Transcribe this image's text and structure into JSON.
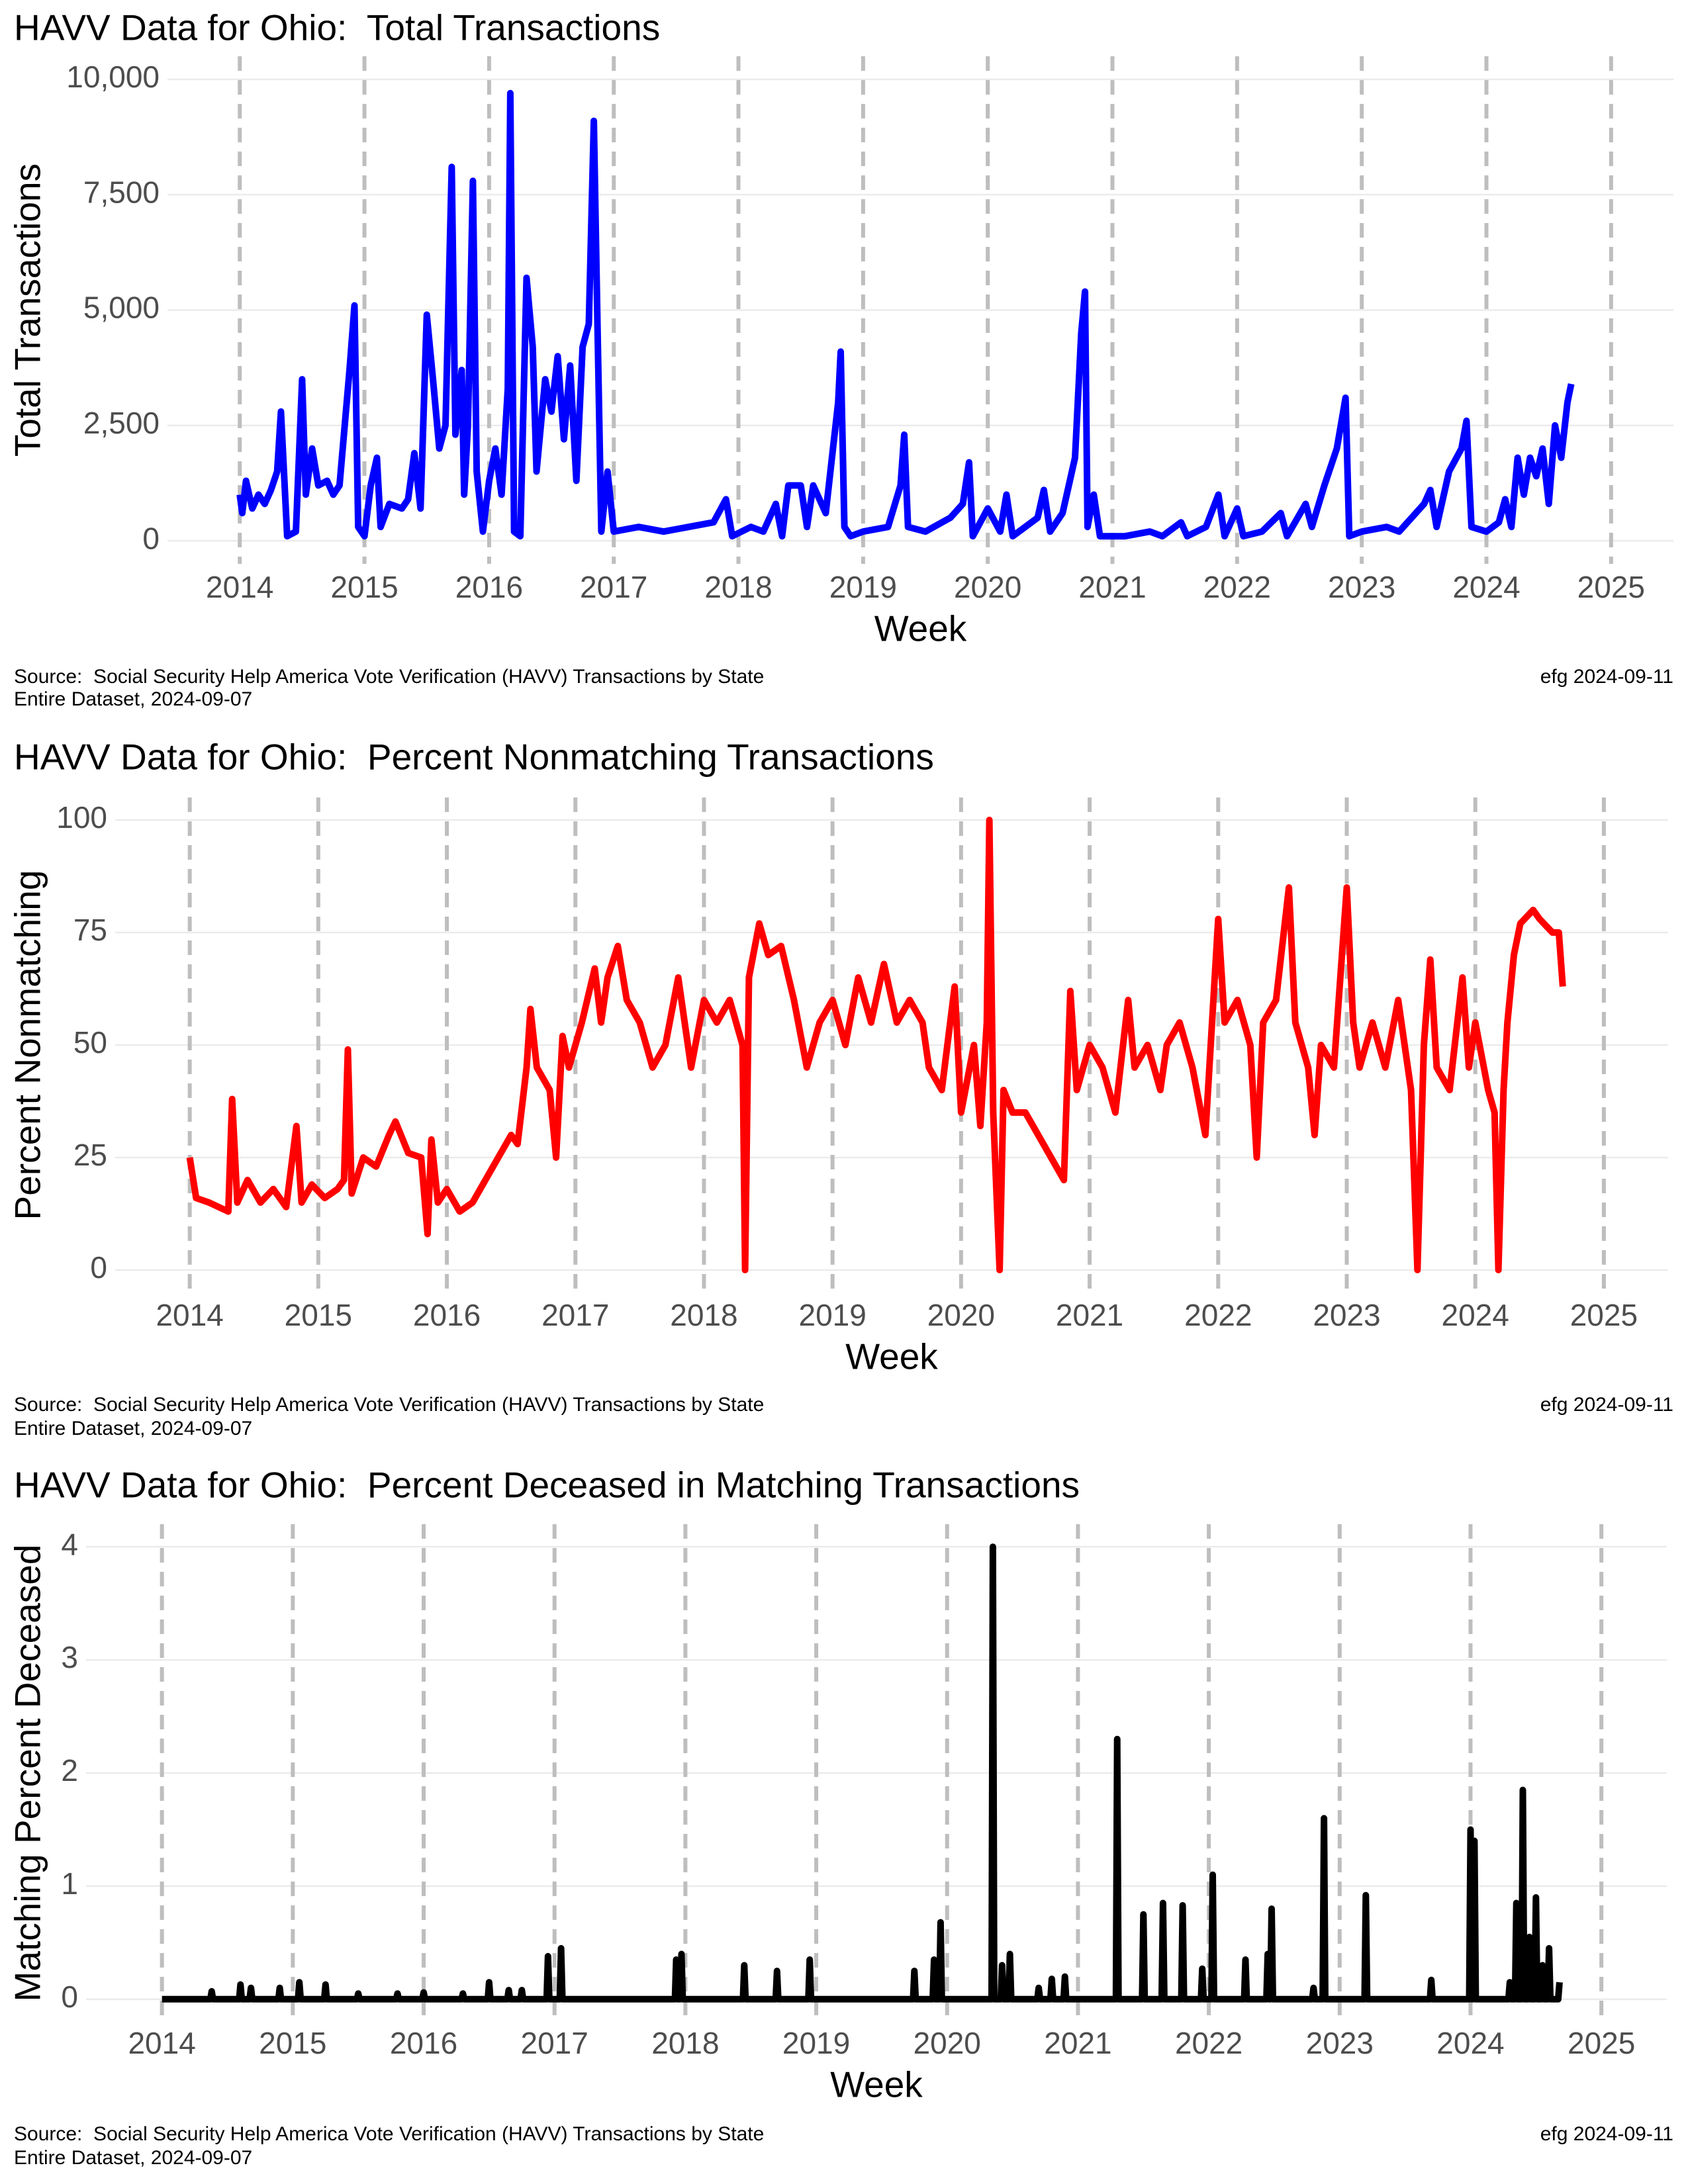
{
  "chart_data": [
    {
      "type": "line",
      "title": "HAVV Data for Ohio:  Total Transactions",
      "x_label": "Week",
      "y_label": "Total Transactions",
      "source": "Source:  Social Security Help America Vote Verification (HAVV) Transactions by State",
      "dataset": "Entire Dataset, 2024-09-07",
      "credit": "efg 2024-09-11",
      "color": "#0000ff",
      "grid": true,
      "year_lines": "dashed",
      "xlim": [
        2013.42,
        2025.5
      ],
      "xticks": [
        2014,
        2015,
        2016,
        2017,
        2018,
        2019,
        2020,
        2021,
        2022,
        2023,
        2024,
        2025
      ],
      "ylim": [
        -500,
        10500
      ],
      "yticks": [
        0,
        {
          "value": 2500,
          "label": "2,500"
        },
        {
          "value": 5000,
          "label": "5,000"
        },
        {
          "value": 7500,
          "label": "7,500"
        },
        {
          "value": 10000,
          "label": "10,000"
        }
      ],
      "x": [
        2014.0,
        2014.02,
        2014.05,
        2014.1,
        2014.15,
        2014.2,
        2014.25,
        2014.3,
        2014.33,
        2014.36,
        2014.38,
        2014.45,
        2014.5,
        2014.53,
        2014.58,
        2014.63,
        2014.7,
        2014.75,
        2014.8,
        2014.88,
        2014.92,
        2014.95,
        2015.0,
        2015.05,
        2015.1,
        2015.13,
        2015.2,
        2015.3,
        2015.35,
        2015.4,
        2015.45,
        2015.5,
        2015.55,
        2015.6,
        2015.65,
        2015.7,
        2015.73,
        2015.78,
        2015.8,
        2015.83,
        2015.87,
        2015.9,
        2015.95,
        2016.0,
        2016.05,
        2016.1,
        2016.15,
        2016.17,
        2016.2,
        2016.25,
        2016.3,
        2016.35,
        2016.38,
        2016.45,
        2016.5,
        2016.55,
        2016.6,
        2016.65,
        2016.7,
        2016.75,
        2016.8,
        2016.84,
        2016.87,
        2016.9,
        2016.95,
        2017.0,
        2017.2,
        2017.4,
        2017.6,
        2017.8,
        2017.9,
        2017.95,
        2018.1,
        2018.2,
        2018.3,
        2018.35,
        2018.4,
        2018.5,
        2018.55,
        2018.6,
        2018.7,
        2018.75,
        2018.8,
        2018.82,
        2018.85,
        2018.9,
        2019.0,
        2019.2,
        2019.3,
        2019.33,
        2019.36,
        2019.5,
        2019.7,
        2019.8,
        2019.85,
        2019.88,
        2020.0,
        2020.1,
        2020.15,
        2020.2,
        2020.4,
        2020.45,
        2020.5,
        2020.6,
        2020.65,
        2020.7,
        2020.75,
        2020.78,
        2020.8,
        2020.85,
        2020.9,
        2021.1,
        2021.3,
        2021.4,
        2021.55,
        2021.6,
        2021.75,
        2021.85,
        2021.9,
        2022.0,
        2022.05,
        2022.2,
        2022.35,
        2022.4,
        2022.55,
        2022.6,
        2022.7,
        2022.8,
        2022.87,
        2022.9,
        2023.0,
        2023.2,
        2023.3,
        2023.4,
        2023.5,
        2023.55,
        2023.6,
        2023.7,
        2023.8,
        2023.84,
        2023.88,
        2024.0,
        2024.1,
        2024.15,
        2024.2,
        2024.25,
        2024.3,
        2024.35,
        2024.4,
        2024.45,
        2024.5,
        2024.55,
        2024.6,
        2024.65,
        2024.68
      ],
      "values": [
        1000,
        600,
        1300,
        700,
        1000,
        800,
        1100,
        1500,
        2800,
        1200,
        100,
        200,
        3500,
        1000,
        2000,
        1200,
        1300,
        1000,
        1200,
        3700,
        5100,
        300,
        100,
        1200,
        1800,
        300,
        800,
        700,
        900,
        1900,
        700,
        4900,
        3500,
        2000,
        2500,
        8100,
        2300,
        3700,
        1000,
        2500,
        7800,
        1500,
        200,
        1300,
        2000,
        1000,
        3300,
        9700,
        200,
        100,
        5700,
        4200,
        1500,
        3500,
        2800,
        4000,
        2200,
        3800,
        1300,
        4200,
        4700,
        9100,
        4600,
        200,
        1500,
        200,
        300,
        200,
        300,
        400,
        900,
        100,
        300,
        200,
        800,
        100,
        1200,
        1200,
        300,
        1200,
        600,
        1800,
        3000,
        4100,
        300,
        100,
        200,
        300,
        1200,
        2300,
        300,
        200,
        500,
        800,
        1700,
        100,
        700,
        200,
        1000,
        100,
        500,
        1100,
        200,
        600,
        1200,
        1800,
        4500,
        5400,
        300,
        1000,
        100,
        100,
        200,
        100,
        400,
        100,
        300,
        1000,
        100,
        700,
        100,
        200,
        600,
        100,
        800,
        300,
        1200,
        2000,
        3100,
        100,
        200,
        300,
        200,
        500,
        800,
        1100,
        300,
        1500,
        2000,
        2600,
        300,
        200,
        400,
        900,
        300,
        1800,
        1000,
        1800,
        1400,
        2000,
        800,
        2500,
        1800,
        3000,
        3400
      ]
    },
    {
      "type": "line",
      "title": "HAVV Data for Ohio:  Percent Nonmatching Transactions",
      "x_label": "Week",
      "y_label": "Percent Nonmatching",
      "source": "Source:  Social Security Help America Vote Verification (HAVV) Transactions by State",
      "dataset": "Entire Dataset, 2024-09-07",
      "credit": "efg 2024-09-11",
      "color": "#ff0000",
      "grid": true,
      "year_lines": "dashed",
      "xlim": [
        2013.42,
        2025.5
      ],
      "xticks": [
        2014,
        2015,
        2016,
        2017,
        2018,
        2019,
        2020,
        2021,
        2022,
        2023,
        2024,
        2025
      ],
      "ylim": [
        -5,
        105
      ],
      "yticks": [
        0,
        25,
        50,
        75,
        100
      ],
      "x": [
        2014.0,
        2014.05,
        2014.15,
        2014.3,
        2014.33,
        2014.37,
        2014.45,
        2014.55,
        2014.65,
        2014.75,
        2014.83,
        2014.87,
        2014.95,
        2015.05,
        2015.15,
        2015.2,
        2015.23,
        2015.26,
        2015.35,
        2015.45,
        2015.55,
        2015.6,
        2015.7,
        2015.8,
        2015.85,
        2015.88,
        2015.93,
        2016.0,
        2016.1,
        2016.2,
        2016.3,
        2016.4,
        2016.5,
        2016.55,
        2016.62,
        2016.65,
        2016.7,
        2016.8,
        2016.85,
        2016.9,
        2016.95,
        2017.05,
        2017.15,
        2017.2,
        2017.25,
        2017.33,
        2017.4,
        2017.5,
        2017.6,
        2017.7,
        2017.8,
        2017.85,
        2017.9,
        2018.0,
        2018.1,
        2018.2,
        2018.3,
        2018.32,
        2018.35,
        2018.43,
        2018.5,
        2018.6,
        2018.7,
        2018.8,
        2018.9,
        2019.0,
        2019.1,
        2019.2,
        2019.3,
        2019.4,
        2019.5,
        2019.6,
        2019.7,
        2019.75,
        2019.85,
        2019.95,
        2020.0,
        2020.1,
        2020.15,
        2020.2,
        2020.22,
        2020.25,
        2020.3,
        2020.33,
        2020.4,
        2020.5,
        2020.6,
        2020.7,
        2020.8,
        2020.85,
        2020.9,
        2021.0,
        2021.1,
        2021.2,
        2021.3,
        2021.35,
        2021.45,
        2021.55,
        2021.6,
        2021.7,
        2021.8,
        2021.9,
        2022.0,
        2022.05,
        2022.15,
        2022.25,
        2022.3,
        2022.35,
        2022.45,
        2022.55,
        2022.6,
        2022.7,
        2022.75,
        2022.8,
        2022.9,
        2023.0,
        2023.05,
        2023.1,
        2023.2,
        2023.3,
        2023.4,
        2023.5,
        2023.55,
        2023.6,
        2023.65,
        2023.7,
        2023.8,
        2023.9,
        2023.95,
        2024.0,
        2024.1,
        2024.15,
        2024.18,
        2024.22,
        2024.25,
        2024.3,
        2024.35,
        2024.45,
        2024.5,
        2024.6,
        2024.65,
        2024.68
      ],
      "values": [
        25,
        16,
        15,
        13,
        38,
        15,
        20,
        15,
        18,
        14,
        32,
        15,
        19,
        16,
        18,
        20,
        49,
        17,
        25,
        23,
        30,
        33,
        26,
        25,
        8,
        29,
        15,
        18,
        13,
        15,
        20,
        25,
        30,
        28,
        45,
        58,
        45,
        40,
        25,
        52,
        45,
        55,
        67,
        55,
        65,
        72,
        60,
        55,
        45,
        50,
        65,
        55,
        45,
        60,
        55,
        60,
        50,
        0,
        65,
        77,
        70,
        72,
        60,
        45,
        55,
        60,
        50,
        65,
        55,
        68,
        55,
        60,
        55,
        45,
        40,
        63,
        35,
        50,
        32,
        55,
        100,
        35,
        0,
        40,
        35,
        35,
        30,
        25,
        20,
        62,
        40,
        50,
        45,
        35,
        60,
        45,
        50,
        40,
        50,
        55,
        45,
        30,
        78,
        55,
        60,
        50,
        25,
        55,
        60,
        85,
        55,
        45,
        30,
        50,
        45,
        85,
        55,
        45,
        55,
        45,
        60,
        40,
        0,
        50,
        69,
        45,
        40,
        65,
        45,
        55,
        40,
        35,
        0,
        40,
        55,
        70,
        77,
        80,
        78,
        75,
        75,
        63
      ]
    },
    {
      "type": "line",
      "title": "HAVV Data for Ohio:  Percent Deceased in Matching Transactions",
      "x_label": "Week",
      "y_label": "Matching Percent Deceased",
      "source": "Source:  Social Security Help America Vote Verification (HAVV) Transactions by State",
      "dataset": "Entire Dataset, 2024-09-07",
      "credit": "efg 2024-09-11",
      "color": "#000000",
      "grid": true,
      "year_lines": "dashed",
      "xlim": [
        2013.42,
        2025.5
      ],
      "xticks": [
        2014,
        2015,
        2016,
        2017,
        2018,
        2019,
        2020,
        2021,
        2022,
        2023,
        2024,
        2025
      ],
      "ylim": [
        -0.2,
        4.2
      ],
      "yticks": [
        0,
        1,
        2,
        3,
        4
      ],
      "x": [
        2014.0,
        2014.37,
        2014.38,
        2014.39,
        2014.59,
        2014.6,
        2014.61,
        2014.67,
        2014.68,
        2014.69,
        2014.89,
        2014.9,
        2014.91,
        2015.04,
        2015.05,
        2015.06,
        2015.24,
        2015.25,
        2015.26,
        2015.49,
        2015.5,
        2015.51,
        2015.79,
        2015.8,
        2015.81,
        2015.99,
        2016.0,
        2016.01,
        2016.29,
        2016.3,
        2016.31,
        2016.49,
        2016.5,
        2016.51,
        2016.64,
        2016.65,
        2016.66,
        2016.74,
        2016.75,
        2016.76,
        2016.94,
        2016.95,
        2016.96,
        2017.04,
        2017.05,
        2017.06,
        2017.92,
        2017.93,
        2017.94,
        2017.96,
        2017.97,
        2017.98,
        2018.44,
        2018.45,
        2018.46,
        2018.69,
        2018.7,
        2018.71,
        2018.94,
        2018.95,
        2018.96,
        2019.74,
        2019.75,
        2019.76,
        2019.89,
        2019.9,
        2019.91,
        2019.94,
        2019.95,
        2019.96,
        2020.34,
        2020.35,
        2020.36,
        2020.41,
        2020.42,
        2020.43,
        2020.47,
        2020.48,
        2020.49,
        2020.69,
        2020.7,
        2020.71,
        2020.79,
        2020.8,
        2020.81,
        2020.89,
        2020.9,
        2020.91,
        2021.29,
        2021.3,
        2021.31,
        2021.49,
        2021.5,
        2021.51,
        2021.64,
        2021.65,
        2021.66,
        2021.79,
        2021.8,
        2021.81,
        2021.94,
        2021.95,
        2021.96,
        2022.02,
        2022.03,
        2022.04,
        2022.27,
        2022.28,
        2022.29,
        2022.44,
        2022.45,
        2022.46,
        2022.47,
        2022.48,
        2022.49,
        2022.79,
        2022.8,
        2022.81,
        2022.87,
        2022.88,
        2022.89,
        2023.19,
        2023.2,
        2023.21,
        2023.69,
        2023.7,
        2023.71,
        2023.99,
        2024.0,
        2024.01,
        2024.02,
        2024.03,
        2024.04,
        2024.29,
        2024.3,
        2024.31,
        2024.34,
        2024.35,
        2024.36,
        2024.39,
        2024.4,
        2024.41,
        2024.44,
        2024.45,
        2024.46,
        2024.49,
        2024.5,
        2024.51,
        2024.54,
        2024.55,
        2024.56,
        2024.59,
        2024.6,
        2024.61,
        2024.67,
        2024.68
      ],
      "values": [
        0,
        0,
        0.07,
        0,
        0,
        0.13,
        0,
        0,
        0.1,
        0,
        0,
        0.1,
        0,
        0,
        0.15,
        0,
        0,
        0.13,
        0,
        0,
        0.05,
        0,
        0,
        0.05,
        0,
        0,
        0.06,
        0,
        0,
        0.05,
        0,
        0,
        0.15,
        0,
        0,
        0.08,
        0,
        0,
        0.08,
        0,
        0,
        0.38,
        0,
        0,
        0.45,
        0,
        0,
        0.35,
        0,
        0,
        0.4,
        0,
        0,
        0.3,
        0,
        0,
        0.25,
        0,
        0,
        0.35,
        0,
        0,
        0.25,
        0,
        0,
        0.35,
        0,
        0,
        0.68,
        0,
        0,
        4,
        0,
        0,
        0.3,
        0,
        0,
        0.4,
        0,
        0,
        0.1,
        0,
        0,
        0.18,
        0,
        0,
        0.2,
        0,
        0,
        2.3,
        0,
        0,
        0.75,
        0,
        0,
        0.85,
        0,
        0,
        0.83,
        0,
        0,
        0.27,
        0,
        0,
        1.1,
        0,
        0,
        0.35,
        0,
        0,
        0.4,
        0,
        0,
        0.8,
        0,
        0,
        0.1,
        0,
        0,
        1.6,
        0,
        0,
        0.92,
        0,
        0,
        0.17,
        0,
        0,
        1.5,
        0,
        0,
        1.4,
        0,
        0,
        0.15,
        0,
        0,
        0.85,
        0,
        0,
        1.85,
        0,
        0,
        0.55,
        0,
        0,
        0.9,
        0,
        0,
        0.3,
        0,
        0,
        0.45,
        0,
        0,
        0.15
      ]
    }
  ]
}
